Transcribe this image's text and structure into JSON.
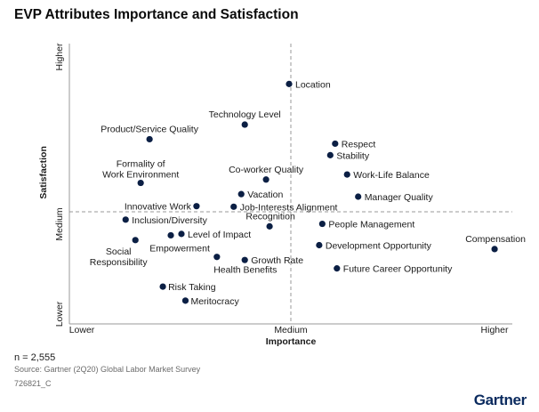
{
  "title": "EVP Attributes Importance and Satisfaction",
  "footer": {
    "n": "n = 2,555",
    "source": "Source: Gartner (2Q20) Global Labor Market Survey",
    "code": "726821_C",
    "logo": "Gartner"
  },
  "colors": {
    "point": "#0b1f44",
    "axis": "#999999",
    "text": "#1a1a1a"
  },
  "chart_data": {
    "type": "scatter",
    "title": "EVP Attributes Importance and Satisfaction",
    "xlabel": "Importance",
    "ylabel": "Satisfaction",
    "x_ticks": [
      "Lower",
      "Medium",
      "Higher"
    ],
    "y_ticks": [
      "Lower",
      "Medium",
      "Higher"
    ],
    "xlim": [
      0,
      100
    ],
    "ylim": [
      0,
      100
    ],
    "reference_lines": {
      "x": 50,
      "y": 40
    },
    "points": [
      {
        "label": "Location",
        "x": 49.6,
        "y": 85.6
      },
      {
        "label": "Technology Level",
        "x": 39.6,
        "y": 71.1
      },
      {
        "label": "Product/Service Quality",
        "x": 18.1,
        "y": 65.9
      },
      {
        "label": "Respect",
        "x": 60.0,
        "y": 64.3
      },
      {
        "label": "Stability",
        "x": 58.9,
        "y": 60.2
      },
      {
        "label": "Work-Life Balance",
        "x": 62.7,
        "y": 53.3
      },
      {
        "label": "Formality of\nWork Environment",
        "x": 16.1,
        "y": 50.3
      },
      {
        "label": "Co-worker Quality",
        "x": 44.4,
        "y": 51.5
      },
      {
        "label": "Vacation",
        "x": 38.8,
        "y": 46.3
      },
      {
        "label": "Manager Quality",
        "x": 65.2,
        "y": 45.4
      },
      {
        "label": "Innovative Work",
        "x": 28.7,
        "y": 42.0
      },
      {
        "label": "Job-Interests Alignment",
        "x": 37.1,
        "y": 41.8
      },
      {
        "label": "Inclusion/Diversity",
        "x": 12.7,
        "y": 37.2
      },
      {
        "label": "Recognition",
        "x": 45.2,
        "y": 34.8
      },
      {
        "label": "People Management",
        "x": 57.1,
        "y": 35.7
      },
      {
        "label": "Level of Impact",
        "x": 25.3,
        "y": 32.1
      },
      {
        "label": "Social\nResponsibility",
        "x": 14.9,
        "y": 29.9
      },
      {
        "label": "Empowerment",
        "x": 22.9,
        "y": 31.6
      },
      {
        "label": "Development Opportunity",
        "x": 56.4,
        "y": 28.1
      },
      {
        "label": "Compensation",
        "x": 96.0,
        "y": 26.7
      },
      {
        "label": "Health Benefits",
        "x": 33.3,
        "y": 23.9
      },
      {
        "label": "Growth Rate",
        "x": 39.6,
        "y": 22.8
      },
      {
        "label": "Future Career Opportunity",
        "x": 60.4,
        "y": 19.8
      },
      {
        "label": "Risk Taking",
        "x": 21.1,
        "y": 13.3
      },
      {
        "label": "Meritocracy",
        "x": 26.2,
        "y": 8.3
      }
    ]
  }
}
